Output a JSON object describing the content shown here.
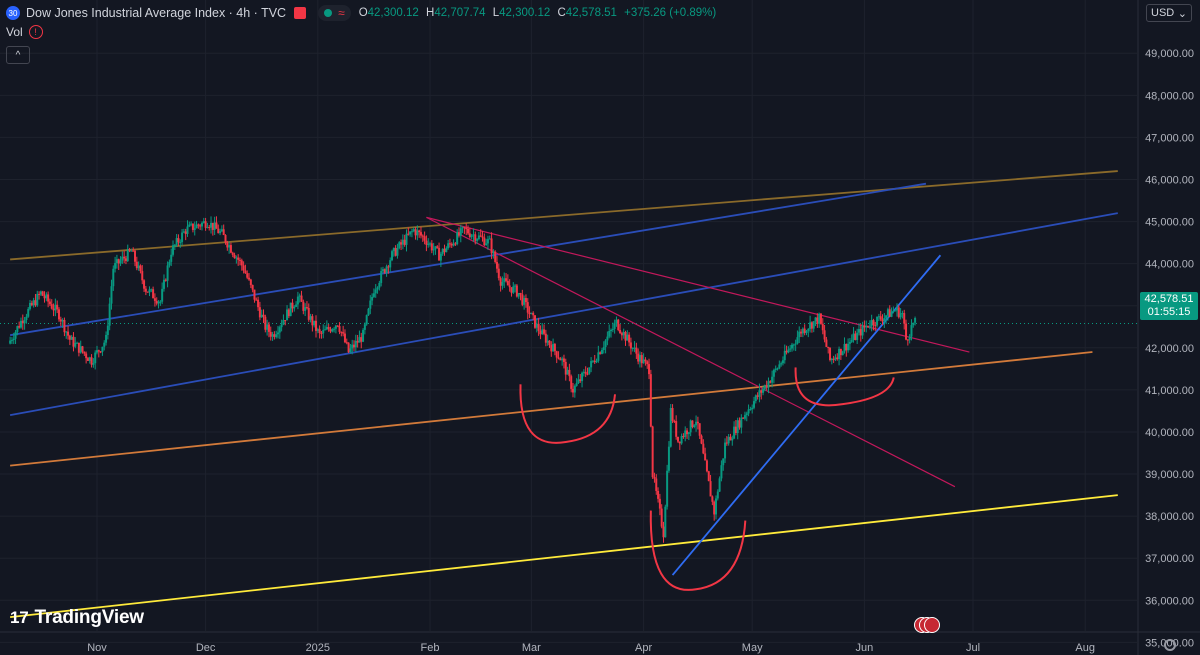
{
  "header": {
    "symbol_badge": "30",
    "title": "Dow Jones Industrial Average Index · 4h · TVC",
    "ohlc": {
      "o_label": "O",
      "o_value": "42,300.12",
      "h_label": "H",
      "h_value": "42,707.74",
      "l_label": "L",
      "l_value": "42,300.12",
      "c_label": "C",
      "c_value": "42,578.51",
      "change": "+375.26 (+0.89%)"
    },
    "vol_label": "Vol",
    "currency": "USD"
  },
  "price_badge": {
    "price": "42,578.51",
    "countdown": "01:55:15"
  },
  "brand": "TradingView",
  "colors": {
    "background": "#131722",
    "up": "#089981",
    "down": "#f23645",
    "grid": "#1e222d",
    "blue_channel": "#2a4db8",
    "bronze_line": "#8a6a2a",
    "orange_line": "#d27a3a",
    "yellow_line": "#ffeb3b",
    "pink_line": "#c2185b",
    "bright_blue": "#2f6cf3",
    "arc": "#f23645"
  },
  "chart_data": {
    "type": "candlestick",
    "interval": "4h",
    "y_scale": "linear",
    "ylim": [
      34700,
      49600
    ],
    "y_ticks": [
      "49,000.00",
      "48,000.00",
      "47,000.00",
      "46,000.00",
      "45,000.00",
      "44,000.00",
      "43,000.00",
      "42,000.00",
      "41,000.00",
      "40,000.00",
      "39,000.00",
      "38,000.00",
      "37,000.00",
      "36,000.00",
      "35,000.00"
    ],
    "x_ticks": [
      {
        "date": "2024-11-01",
        "label": "Nov"
      },
      {
        "date": "2024-12-01",
        "label": "Dec"
      },
      {
        "date": "2025-01-01",
        "label": "2025"
      },
      {
        "date": "2025-02-01",
        "label": "Feb"
      },
      {
        "date": "2025-03-01",
        "label": "Mar"
      },
      {
        "date": "2025-04-01",
        "label": "Apr"
      },
      {
        "date": "2025-05-01",
        "label": "May"
      },
      {
        "date": "2025-06-01",
        "label": "Jun"
      },
      {
        "date": "2025-07-01",
        "label": "Jul"
      },
      {
        "date": "2025-08-01",
        "label": "Aug"
      }
    ],
    "last_price": 42578.51,
    "price_path": [
      [
        "2024-10-08",
        42100
      ],
      [
        "2024-10-12",
        42700
      ],
      [
        "2024-10-17",
        43300
      ],
      [
        "2024-10-22",
        42800
      ],
      [
        "2024-10-25",
        42200
      ],
      [
        "2024-10-31",
        41700
      ],
      [
        "2024-11-04",
        42200
      ],
      [
        "2024-11-06",
        43900
      ],
      [
        "2024-11-11",
        44300
      ],
      [
        "2024-11-15",
        43400
      ],
      [
        "2024-11-19",
        43100
      ],
      [
        "2024-11-22",
        44300
      ],
      [
        "2024-11-26",
        44800
      ],
      [
        "2024-12-02",
        45000
      ],
      [
        "2024-12-06",
        44700
      ],
      [
        "2024-12-12",
        43900
      ],
      [
        "2024-12-18",
        42500
      ],
      [
        "2024-12-20",
        42300
      ],
      [
        "2024-12-27",
        43200
      ],
      [
        "2025-01-02",
        42300
      ],
      [
        "2025-01-07",
        42600
      ],
      [
        "2025-01-10",
        41900
      ],
      [
        "2025-01-14",
        42300
      ],
      [
        "2025-01-17",
        43400
      ],
      [
        "2025-01-22",
        44200
      ],
      [
        "2025-01-28",
        44800
      ],
      [
        "2025-01-31",
        44600
      ],
      [
        "2025-02-04",
        44200
      ],
      [
        "2025-02-11",
        44800
      ],
      [
        "2025-02-18",
        44500
      ],
      [
        "2025-02-21",
        43600
      ],
      [
        "2025-02-26",
        43300
      ],
      [
        "2025-03-03",
        42500
      ],
      [
        "2025-03-10",
        41700
      ],
      [
        "2025-03-13",
        41000
      ],
      [
        "2025-03-18",
        41600
      ],
      [
        "2025-03-25",
        42600
      ],
      [
        "2025-03-31",
        41800
      ],
      [
        "2025-04-03",
        41500
      ],
      [
        "2025-04-04",
        39000
      ],
      [
        "2025-04-07",
        37600
      ],
      [
        "2025-04-09",
        40500
      ],
      [
        "2025-04-11",
        39800
      ],
      [
        "2025-04-16",
        40300
      ],
      [
        "2025-04-21",
        38100
      ],
      [
        "2025-04-24",
        39700
      ],
      [
        "2025-04-30",
        40500
      ],
      [
        "2025-05-06",
        41200
      ],
      [
        "2025-05-12",
        42000
      ],
      [
        "2025-05-15",
        42400
      ],
      [
        "2025-05-20",
        42700
      ],
      [
        "2025-05-23",
        41700
      ],
      [
        "2025-05-28",
        42100
      ],
      [
        "2025-06-03",
        42600
      ],
      [
        "2025-06-06",
        42700
      ],
      [
        "2025-06-10",
        42900
      ],
      [
        "2025-06-12",
        42800
      ],
      [
        "2025-06-13",
        42200
      ],
      [
        "2025-06-15",
        42578.51
      ]
    ],
    "trendlines": [
      {
        "color": "#8a6a2a",
        "from": [
          "2024-10-08",
          44100
        ],
        "to": [
          "2025-08-10",
          46200
        ]
      },
      {
        "color": "#2a4db8",
        "from": [
          "2024-10-08",
          42300
        ],
        "to": [
          "2025-06-18",
          45900
        ]
      },
      {
        "color": "#2a4db8",
        "from": [
          "2024-10-08",
          40400
        ],
        "to": [
          "2025-08-10",
          45200
        ]
      },
      {
        "color": "#d27a3a",
        "from": [
          "2024-10-08",
          39200
        ],
        "to": [
          "2025-08-03",
          41900
        ]
      },
      {
        "color": "#ffeb3b",
        "from": [
          "2024-10-08",
          35600
        ],
        "to": [
          "2025-08-10",
          38500
        ]
      },
      {
        "color": "#c2185b",
        "from": [
          "2025-01-31",
          45100
        ],
        "to": [
          "2025-06-30",
          41900
        ]
      },
      {
        "color": "#c2185b",
        "from": [
          "2025-01-31",
          45100
        ],
        "to": [
          "2025-06-26",
          38700
        ]
      },
      {
        "color": "#2f6cf3",
        "from": [
          "2025-04-09",
          36600
        ],
        "to": [
          "2025-06-22",
          44200
        ]
      }
    ],
    "annotation_arcs": [
      {
        "label": "left-shoulder",
        "from": "2025-02-26",
        "to": "2025-03-23",
        "top": 40800,
        "bottom": 40000
      },
      {
        "label": "head",
        "from": "2025-04-03",
        "to": "2025-04-28",
        "top": 37800,
        "bottom": 36500
      },
      {
        "label": "right-shoulder",
        "from": "2025-05-13",
        "to": "2025-06-08",
        "top": 41200,
        "bottom": 40900
      }
    ]
  }
}
